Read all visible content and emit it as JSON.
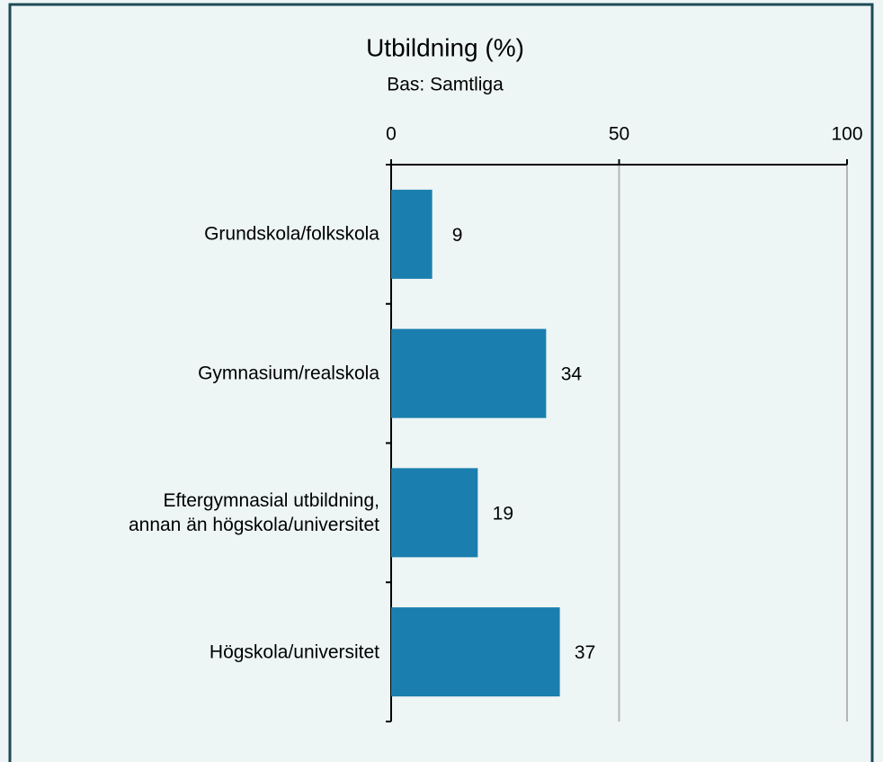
{
  "chart_data": {
    "type": "bar",
    "orientation": "horizontal",
    "title": "Utbildning (%)",
    "subtitle": "Bas: Samtliga",
    "categories": [
      "Grundskola/folkskola",
      "Gymnasium/realskola",
      "Eftergymnasial utbildning,\nannan än högskola/universitet",
      "Högskola/universitet"
    ],
    "values": [
      9,
      34,
      19,
      37
    ],
    "color": "#1a7fae",
    "xlim": [
      0,
      100
    ],
    "xticks": [
      0,
      50,
      100
    ],
    "grid": true
  }
}
